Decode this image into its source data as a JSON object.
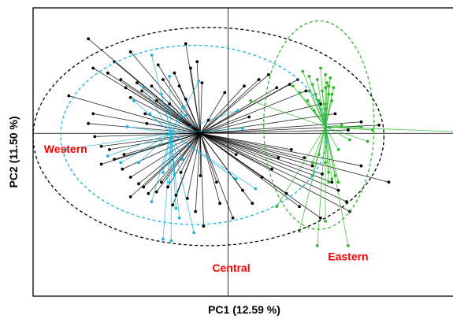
{
  "chart_data": {
    "type": "scatter",
    "title": "",
    "xlabel": "PC1 (12.59 %)",
    "ylabel": "PC2 (11.50 %)",
    "xlim": [
      -1.2,
      1.4
    ],
    "ylim": [
      -1.0,
      0.77
    ],
    "grid": false,
    "legend": "none",
    "reference_lines": {
      "x": 0.0,
      "y": 0.0
    },
    "group_labels": [
      {
        "name": "Western",
        "x": -1.0,
        "y": -0.12,
        "color": "#ff0000"
      },
      {
        "name": "Central",
        "x": 0.02,
        "y": -0.85,
        "color": "#ff0000"
      },
      {
        "name": "Eastern",
        "x": 0.74,
        "y": -0.78,
        "color": "#ff0000"
      }
    ],
    "series": [
      {
        "name": "Central",
        "color": "#000000",
        "centroid": [
          -0.17,
          0.0
        ],
        "ellipse": {
          "cx": -0.12,
          "cy": -0.02,
          "rx": 1.08,
          "ry": 0.67
        },
        "points": [
          [
            -0.86,
            0.58
          ],
          [
            -0.83,
            0.4
          ],
          [
            -0.98,
            0.23
          ],
          [
            -0.83,
            0.12
          ],
          [
            -0.74,
            0.37
          ],
          [
            -0.66,
            0.33
          ],
          [
            -0.63,
            0.28
          ],
          [
            -0.6,
            0.22
          ],
          [
            -0.56,
            0.31
          ],
          [
            -0.53,
            0.26
          ],
          [
            -0.51,
            0.12
          ],
          [
            -0.47,
            0.29
          ],
          [
            -0.44,
            0.2
          ],
          [
            -0.4,
            0.33
          ],
          [
            -0.36,
            0.18
          ],
          [
            -0.33,
            0.37
          ],
          [
            -0.3,
            0.29
          ],
          [
            -0.26,
            0.21
          ],
          [
            -0.23,
            0.4
          ],
          [
            -0.43,
            0.42
          ],
          [
            -0.26,
            0.55
          ],
          [
            -0.6,
            0.5
          ],
          [
            -0.02,
            0.25
          ],
          [
            -0.19,
            0.44
          ],
          [
            -0.86,
            0.06
          ],
          [
            -0.82,
            -0.02
          ],
          [
            -0.78,
            -0.08
          ],
          [
            -0.73,
            -0.1
          ],
          [
            -0.7,
            -0.16
          ],
          [
            -0.65,
            -0.22
          ],
          [
            -0.6,
            -0.27
          ],
          [
            -0.55,
            -0.31
          ],
          [
            -0.52,
            -0.33
          ],
          [
            -0.49,
            -0.37
          ],
          [
            -0.44,
            -0.36
          ],
          [
            -0.41,
            -0.3
          ],
          [
            -0.37,
            -0.33
          ],
          [
            -0.32,
            -0.38
          ],
          [
            -0.29,
            -0.24
          ],
          [
            -0.25,
            -0.4
          ],
          [
            -0.2,
            -0.48
          ],
          [
            -0.15,
            -0.57
          ],
          [
            -0.07,
            -0.3
          ],
          [
            -0.05,
            -0.43
          ],
          [
            -0.64,
            -0.13
          ],
          [
            -0.78,
            -0.19
          ],
          [
            -0.6,
            -0.39
          ],
          [
            0.03,
            -0.52
          ],
          [
            -0.17,
            -0.26
          ],
          [
            -0.34,
            -0.44
          ],
          [
            0.1,
            0.29
          ],
          [
            0.19,
            0.33
          ],
          [
            0.25,
            0.36
          ],
          [
            0.3,
            0.28
          ],
          [
            0.38,
            0.3
          ],
          [
            0.43,
            0.33
          ],
          [
            0.48,
            0.26
          ],
          [
            0.57,
            0.18
          ],
          [
            0.66,
            0.12
          ],
          [
            0.74,
            0.02
          ],
          [
            0.82,
            0.07
          ],
          [
            0.93,
            0.05
          ],
          [
            0.31,
            -0.15
          ],
          [
            0.39,
            -0.1
          ],
          [
            0.47,
            -0.15
          ],
          [
            0.52,
            -0.2
          ],
          [
            0.58,
            -0.25
          ],
          [
            0.64,
            -0.3
          ],
          [
            0.68,
            -0.35
          ],
          [
            0.73,
            -0.42
          ],
          [
            0.75,
            -0.48
          ],
          [
            0.82,
            -0.2
          ],
          [
            0.99,
            -0.3
          ],
          [
            0.13,
            0.1
          ],
          [
            0.05,
            -0.13
          ],
          [
            0.21,
            -0.27
          ],
          [
            0.27,
            -0.22
          ],
          [
            -0.16,
            0.31
          ],
          [
            -0.7,
            0.44
          ],
          [
            -0.5,
            0.06
          ],
          [
            -0.12,
            0.08
          ],
          [
            0.15,
            -0.43
          ],
          [
            0.36,
            -0.37
          ],
          [
            0.44,
            -0.45
          ],
          [
            0.57,
            -0.52
          ],
          [
            0.09,
            -0.35
          ]
        ]
      },
      {
        "name": "Western",
        "color": "#1ab4d8",
        "centroid": [
          -0.35,
          0.0
        ],
        "ellipse": {
          "cx": -0.21,
          "cy": -0.01,
          "rx": 0.82,
          "ry": 0.55
        },
        "points": [
          [
            -0.47,
            0.48
          ],
          [
            -0.52,
            0.28
          ],
          [
            -0.41,
            0.24
          ],
          [
            -0.36,
            0.35
          ],
          [
            -0.58,
            0.2
          ],
          [
            -0.28,
            0.16
          ],
          [
            -0.48,
            0.12
          ],
          [
            -0.62,
            0.04
          ],
          [
            -1.0,
            -0.1
          ],
          [
            -0.74,
            -0.14
          ],
          [
            -0.66,
            -0.18
          ],
          [
            -0.55,
            -0.18
          ],
          [
            -0.4,
            -0.24
          ],
          [
            -0.36,
            -0.3
          ],
          [
            -0.33,
            -0.25
          ],
          [
            -0.47,
            -0.42
          ],
          [
            -0.32,
            -0.46
          ],
          [
            -0.3,
            -0.52
          ],
          [
            -0.4,
            -0.65
          ],
          [
            -0.21,
            -0.61
          ],
          [
            -0.35,
            -0.66
          ],
          [
            0.05,
            -0.28
          ],
          [
            0.17,
            -0.34
          ],
          [
            0.06,
            0.14
          ],
          [
            -0.18,
            0.32
          ],
          [
            -0.26,
            0.11
          ],
          [
            -0.28,
            -0.16
          ],
          [
            0.09,
            0.03
          ]
        ]
      },
      {
        "name": "Eastern",
        "color": "#2fb82a",
        "centroid": [
          0.6,
          0.04
        ],
        "ellipse": {
          "cx": 0.56,
          "cy": 0.05,
          "rx": 0.34,
          "ry": 0.64
        },
        "points": [
          [
            0.46,
            0.38
          ],
          [
            0.5,
            0.35
          ],
          [
            0.52,
            0.3
          ],
          [
            0.55,
            0.33
          ],
          [
            0.57,
            0.4
          ],
          [
            0.6,
            0.36
          ],
          [
            0.61,
            0.31
          ],
          [
            0.63,
            0.34
          ],
          [
            0.65,
            0.28
          ],
          [
            0.58,
            0.26
          ],
          [
            0.62,
            0.24
          ],
          [
            0.64,
            0.2
          ],
          [
            0.56,
            0.2
          ],
          [
            0.6,
            0.15
          ],
          [
            0.53,
            0.14
          ],
          [
            0.49,
            0.2
          ],
          [
            0.44,
            0.25
          ],
          [
            0.4,
            0.29
          ],
          [
            0.5,
            0.26
          ],
          [
            0.54,
            0.24
          ],
          [
            0.6,
            0.28
          ],
          [
            0.62,
            0.29
          ],
          [
            0.64,
            0.24
          ],
          [
            0.6,
            0.18
          ],
          [
            0.7,
            0.05
          ],
          [
            0.82,
            0.04
          ],
          [
            0.89,
            0.02
          ],
          [
            1.4,
            0.01
          ],
          [
            0.75,
            -0.04
          ],
          [
            0.86,
            -0.05
          ],
          [
            0.68,
            -0.1
          ],
          [
            0.56,
            -0.13
          ],
          [
            0.6,
            -0.18
          ],
          [
            0.62,
            -0.24
          ],
          [
            0.64,
            -0.28
          ],
          [
            0.68,
            -0.3
          ],
          [
            0.62,
            -0.3
          ],
          [
            0.66,
            -0.26
          ],
          [
            0.52,
            -0.26
          ],
          [
            0.3,
            -0.45
          ],
          [
            0.44,
            -0.6
          ],
          [
            0.55,
            -0.69
          ],
          [
            0.6,
            -0.54
          ],
          [
            0.74,
            -0.69
          ],
          [
            0.14,
            0.2
          ],
          [
            0.52,
            -0.18
          ]
        ]
      }
    ]
  }
}
